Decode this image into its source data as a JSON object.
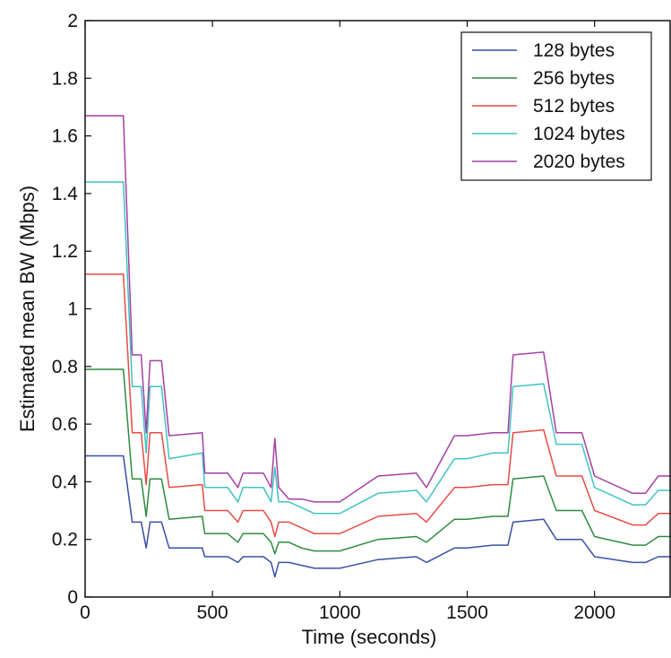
{
  "chart_data": {
    "type": "line",
    "title": "",
    "xlabel": "Time (seconds)",
    "ylabel": "Estimated mean BW (Mbps)",
    "xlim": [
      0,
      2300
    ],
    "ylim": [
      0,
      2
    ],
    "xticks": [
      0,
      500,
      1000,
      1500,
      2000
    ],
    "xtick_labels": [
      "0",
      "500",
      "1000",
      "1500",
      "2000"
    ],
    "yticks": [
      0,
      0.2,
      0.4,
      0.6,
      0.8,
      1,
      1.2,
      1.4,
      1.6,
      1.8,
      2
    ],
    "ytick_labels": [
      "0",
      "0.2",
      "0.4",
      "0.6",
      "0.8",
      "1",
      "1.2",
      "1.4",
      "1.6",
      "1.8",
      "2"
    ],
    "grid": false,
    "legend_position": "top-right",
    "series": [
      {
        "name": "128 bytes",
        "color": "#3a4fa6",
        "x": [
          0,
          150,
          185,
          220,
          240,
          255,
          280,
          300,
          330,
          460,
          470,
          560,
          600,
          620,
          700,
          730,
          745,
          760,
          800,
          850,
          900,
          1000,
          1150,
          1300,
          1340,
          1450,
          1500,
          1600,
          1660,
          1680,
          1800,
          1850,
          1950,
          2000,
          2150,
          2200,
          2250,
          2300
        ],
        "y": [
          0.49,
          0.49,
          0.26,
          0.26,
          0.17,
          0.26,
          0.26,
          0.26,
          0.17,
          0.17,
          0.14,
          0.14,
          0.12,
          0.14,
          0.14,
          0.12,
          0.07,
          0.12,
          0.12,
          0.11,
          0.1,
          0.1,
          0.13,
          0.14,
          0.12,
          0.17,
          0.17,
          0.18,
          0.18,
          0.26,
          0.27,
          0.2,
          0.2,
          0.14,
          0.12,
          0.12,
          0.14,
          0.14
        ]
      },
      {
        "name": "256 bytes",
        "color": "#2e8b3e",
        "x": [
          0,
          150,
          185,
          220,
          240,
          255,
          280,
          300,
          330,
          460,
          470,
          560,
          600,
          620,
          700,
          730,
          745,
          760,
          800,
          850,
          900,
          1000,
          1150,
          1300,
          1340,
          1450,
          1500,
          1600,
          1660,
          1680,
          1800,
          1850,
          1950,
          2000,
          2150,
          2200,
          2250,
          2300
        ],
        "y": [
          0.79,
          0.79,
          0.41,
          0.41,
          0.28,
          0.41,
          0.41,
          0.41,
          0.27,
          0.28,
          0.22,
          0.22,
          0.19,
          0.22,
          0.22,
          0.19,
          0.15,
          0.19,
          0.19,
          0.17,
          0.16,
          0.16,
          0.2,
          0.21,
          0.19,
          0.27,
          0.27,
          0.28,
          0.28,
          0.41,
          0.42,
          0.3,
          0.3,
          0.21,
          0.18,
          0.18,
          0.21,
          0.21
        ]
      },
      {
        "name": "512 bytes",
        "color": "#e84b45",
        "x": [
          0,
          150,
          185,
          220,
          240,
          255,
          280,
          300,
          330,
          460,
          470,
          560,
          600,
          620,
          700,
          730,
          745,
          760,
          800,
          850,
          900,
          1000,
          1150,
          1300,
          1340,
          1450,
          1500,
          1600,
          1660,
          1680,
          1800,
          1850,
          1950,
          2000,
          2150,
          2200,
          2250,
          2300
        ],
        "y": [
          1.12,
          1.12,
          0.57,
          0.57,
          0.39,
          0.57,
          0.57,
          0.57,
          0.38,
          0.39,
          0.3,
          0.3,
          0.26,
          0.3,
          0.3,
          0.26,
          0.21,
          0.26,
          0.26,
          0.24,
          0.22,
          0.22,
          0.28,
          0.29,
          0.26,
          0.38,
          0.38,
          0.39,
          0.39,
          0.57,
          0.58,
          0.42,
          0.42,
          0.3,
          0.25,
          0.25,
          0.29,
          0.29
        ]
      },
      {
        "name": "1024 bytes",
        "color": "#3fc3c0",
        "x": [
          0,
          150,
          185,
          220,
          240,
          255,
          280,
          300,
          330,
          460,
          470,
          560,
          600,
          620,
          700,
          730,
          745,
          760,
          800,
          850,
          900,
          1000,
          1150,
          1300,
          1340,
          1450,
          1500,
          1600,
          1660,
          1680,
          1800,
          1850,
          1950,
          2000,
          2150,
          2200,
          2250,
          2300
        ],
        "y": [
          1.44,
          1.44,
          0.73,
          0.73,
          0.5,
          0.73,
          0.73,
          0.73,
          0.48,
          0.5,
          0.38,
          0.38,
          0.33,
          0.38,
          0.38,
          0.33,
          0.45,
          0.33,
          0.33,
          0.31,
          0.29,
          0.29,
          0.36,
          0.37,
          0.33,
          0.48,
          0.48,
          0.5,
          0.5,
          0.73,
          0.74,
          0.53,
          0.53,
          0.38,
          0.32,
          0.32,
          0.37,
          0.37
        ]
      },
      {
        "name": "2020 bytes",
        "color": "#a43fa6",
        "x": [
          0,
          150,
          185,
          220,
          240,
          255,
          280,
          300,
          330,
          460,
          470,
          560,
          600,
          620,
          700,
          730,
          745,
          760,
          800,
          850,
          900,
          1000,
          1150,
          1300,
          1340,
          1450,
          1500,
          1600,
          1660,
          1680,
          1800,
          1850,
          1950,
          2000,
          2150,
          2200,
          2250,
          2300
        ],
        "y": [
          1.67,
          1.67,
          0.84,
          0.84,
          0.57,
          0.82,
          0.82,
          0.82,
          0.56,
          0.57,
          0.43,
          0.43,
          0.38,
          0.43,
          0.43,
          0.38,
          0.55,
          0.38,
          0.34,
          0.34,
          0.33,
          0.33,
          0.42,
          0.43,
          0.38,
          0.56,
          0.56,
          0.57,
          0.57,
          0.84,
          0.85,
          0.57,
          0.57,
          0.42,
          0.36,
          0.36,
          0.42,
          0.42
        ]
      }
    ]
  }
}
